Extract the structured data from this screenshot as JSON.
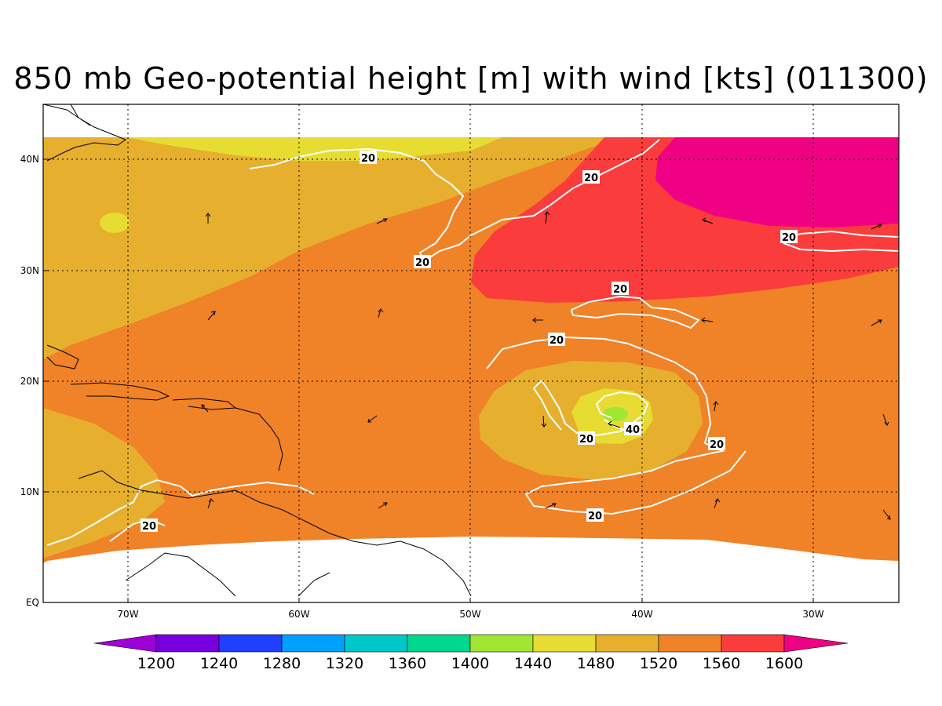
{
  "map": {
    "title": "850 mb Geo-potential height [m] with wind [kts] (011300)",
    "lon_labels": [
      "70W",
      "60W",
      "50W",
      "40W",
      "30W"
    ],
    "lat_labels": [
      "40N",
      "30N",
      "20N",
      "10N",
      "EQ"
    ],
    "grid": "on",
    "colors": {
      "1200": "#a000d8",
      "1240": "#7800e0",
      "1280": "#2040ff",
      "1320": "#00a0ff",
      "1360": "#00c8c8",
      "1400": "#00d890",
      "1440": "#a0e632",
      "1480": "#e6dc32",
      "1520": "#e6af2d",
      "1560": "#f08228",
      "1600": "#fa3c3c",
      "above": "#f00082",
      "contour": "#ffffff",
      "coast": "#000000"
    }
  },
  "colorbar": {
    "labels": [
      "1200",
      "1240",
      "1280",
      "1320",
      "1360",
      "1400",
      "1440",
      "1480",
      "1520",
      "1560",
      "1600"
    ],
    "colors": [
      "#a000d8",
      "#7800e0",
      "#2040ff",
      "#00a0ff",
      "#00c8c8",
      "#00d890",
      "#a0e632",
      "#e6dc32",
      "#e6af2d",
      "#f08228",
      "#fa3c3c",
      "#f00082"
    ]
  },
  "contour_labels": {
    "c1": "20",
    "c2": "20",
    "c3": "20",
    "c4": "20",
    "c5": "20",
    "c6": "20",
    "c7": "20",
    "c8": "20",
    "c9": "20",
    "c10": "20",
    "c11": "40"
  }
}
